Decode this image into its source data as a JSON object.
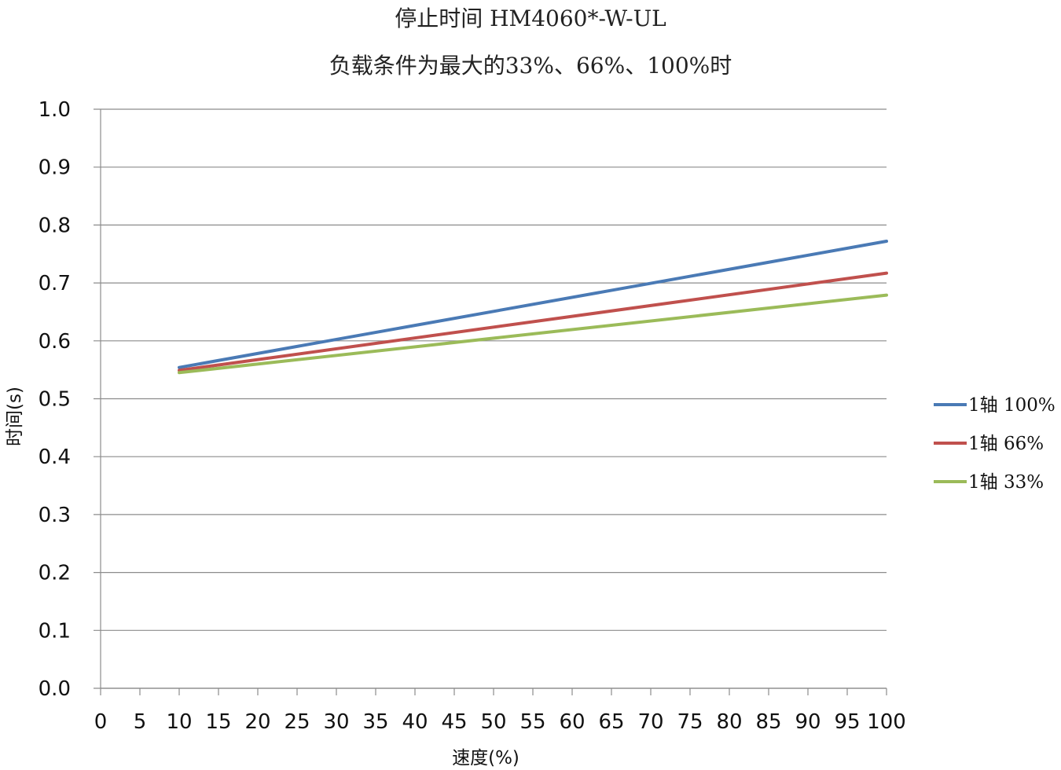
{
  "chart_data": {
    "type": "line",
    "title": "停止时间 HM4060*-W-UL",
    "subtitle": "负载条件为最大的33%、66%、100%时",
    "xlabel": "速度(%)",
    "ylabel": "时间(s)",
    "xlim": [
      0,
      100
    ],
    "ylim": [
      0,
      1.0
    ],
    "xticks": [
      0,
      5,
      10,
      15,
      20,
      25,
      30,
      35,
      40,
      45,
      50,
      55,
      60,
      65,
      70,
      75,
      80,
      85,
      90,
      95,
      100
    ],
    "yticks": [
      0.0,
      0.1,
      0.2,
      0.3,
      0.4,
      0.5,
      0.6,
      0.7,
      0.8,
      0.9,
      1.0
    ],
    "grid": "horizontal",
    "legend_position": "right",
    "series": [
      {
        "name": "1轴 100%",
        "color": "#4a7ab5",
        "x": [
          10,
          100
        ],
        "y": [
          0.554,
          0.772
        ]
      },
      {
        "name": "1轴 66%",
        "color": "#c0504d",
        "x": [
          10,
          100
        ],
        "y": [
          0.549,
          0.717
        ]
      },
      {
        "name": "1轴 33%",
        "color": "#9bbb59",
        "x": [
          10,
          100
        ],
        "y": [
          0.545,
          0.679
        ]
      }
    ]
  }
}
